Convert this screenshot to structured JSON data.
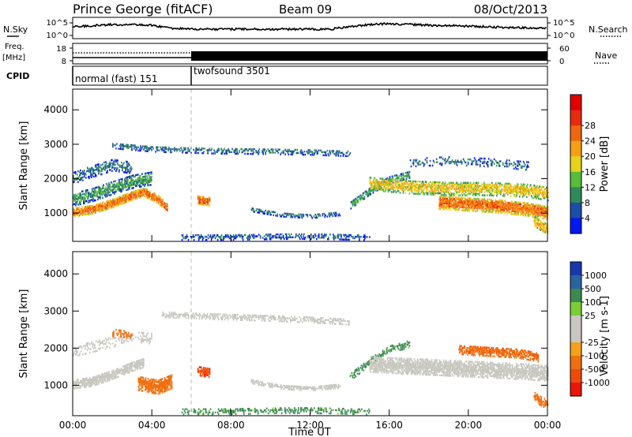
{
  "header": {
    "station": "Prince George (fitACF)",
    "beam": "Beam 09",
    "date": "08/Oct/2013"
  },
  "top_panels": {
    "nsky_label": "N.Sky",
    "nsky_ticks": [
      "10^5",
      "10^0"
    ],
    "nsearch_ticks": [
      "10^5",
      "10^0"
    ],
    "nsearch_label": "N.Search",
    "freq_label_1": "Freq.",
    "freq_label_2": "[MHz]",
    "freq_ticks": [
      "18",
      "8"
    ],
    "nave_ticks": [
      "60",
      "0"
    ],
    "nave_label": "Nave",
    "cpid_label": "CPID",
    "cpid_modes": [
      {
        "name": "normal (fast) 151",
        "start_h": 0,
        "end_h": 6
      },
      {
        "name": "twofsound 3501",
        "start_h": 6,
        "end_h": 24
      }
    ]
  },
  "colors": {
    "power_scale": [
      "#0018f0",
      "#1c4ea8",
      "#2e8a58",
      "#56be3a",
      "#e8d21c",
      "#f5a014",
      "#f0660e",
      "#e82a0e",
      "#e20000"
    ],
    "velocity_scale": [
      "#1838b0",
      "#2a64a0",
      "#3c8a50",
      "#7ccc36",
      "#c8c8c0",
      "#c8c8c0",
      "#f3a21a",
      "#f07010",
      "#ee4a0c",
      "#e81606"
    ]
  },
  "chart_data": [
    {
      "type": "heatmap",
      "title": "",
      "quantity": "Power",
      "colorbar_label": "Power [dB]",
      "colorbar_ticks": [
        "4",
        "8",
        "12",
        "16",
        "20",
        "24",
        "28"
      ],
      "ylabel": "Slant Range [km]",
      "yticks": [
        "1000",
        "2000",
        "3000",
        "4000"
      ],
      "ylim": [
        180,
        4600
      ],
      "xlim": [
        0,
        24
      ],
      "scatter_bands": [
        {
          "x": [
            0.0,
            1.0,
            2.0,
            3.0,
            3.6,
            4.3,
            4.8
          ],
          "y": [
            1020,
            1100,
            1280,
            1500,
            1600,
            1400,
            1120
          ],
          "w": 260,
          "v": 25,
          "d": 0.96
        },
        {
          "x": [
            0.0,
            1.0,
            2.0,
            3.0,
            4.0
          ],
          "y": [
            1380,
            1520,
            1720,
            1900,
            2000
          ],
          "w": 380,
          "v": 11,
          "d": 0.72
        },
        {
          "x": [
            0.0,
            1.0,
            2.0,
            3.0
          ],
          "y": [
            2000,
            2200,
            2380,
            2300
          ],
          "w": 330,
          "v": 8,
          "d": 0.5
        },
        {
          "x": [
            6.3,
            6.9
          ],
          "y": [
            1380,
            1330
          ],
          "w": 260,
          "v": 26,
          "d": 0.9
        },
        {
          "x": [
            2.0,
            4.0,
            7.0,
            10.0,
            12.0,
            14.0
          ],
          "y": [
            2950,
            2850,
            2800,
            2780,
            2760,
            2720
          ],
          "w": 170,
          "v": 8,
          "d": 0.45
        },
        {
          "x": [
            9.0,
            10.5,
            12.0,
            13.5
          ],
          "y": [
            1100,
            950,
            900,
            980
          ],
          "w": 130,
          "v": 8,
          "d": 0.55
        },
        {
          "x": [
            14.0,
            15.0,
            16.0,
            17.0
          ],
          "y": [
            1200,
            1620,
            1950,
            2100
          ],
          "w": 200,
          "v": 12,
          "d": 0.65
        },
        {
          "x": [
            15.0,
            17.0,
            19.0,
            21.0,
            23.0,
            24.0
          ],
          "y": [
            1850,
            1750,
            1700,
            1700,
            1650,
            1550
          ],
          "w": 400,
          "v": 19,
          "d": 0.72
        },
        {
          "x": [
            18.5,
            20.0,
            21.5,
            23.0,
            24.0
          ],
          "y": [
            1300,
            1250,
            1200,
            1100,
            1000
          ],
          "w": 400,
          "v": 25,
          "d": 0.92
        },
        {
          "x": [
            17.0,
            19.0,
            21.0,
            23.0
          ],
          "y": [
            2450,
            2500,
            2450,
            2350
          ],
          "w": 230,
          "v": 7,
          "d": 0.35
        },
        {
          "x": [
            23.3,
            23.7,
            24.0
          ],
          "y": [
            750,
            600,
            520
          ],
          "w": 280,
          "v": 21,
          "d": 0.85
        },
        {
          "x": [
            5.5,
            8.0,
            11.0,
            13.0,
            15.0
          ],
          "y": [
            290,
            290,
            320,
            310,
            280
          ],
          "w": 170,
          "v": 6,
          "d": 0.45
        }
      ]
    },
    {
      "type": "heatmap",
      "title": "",
      "quantity": "Velocity",
      "colorbar_label": "Velocity [m s-1]",
      "colorbar_ticks": [
        "1000",
        "500",
        "100",
        "25",
        "-25",
        "-100",
        "-500",
        "-1000"
      ],
      "xlabel": "Time UT",
      "xticks": [
        "00:00",
        "04:00",
        "08:00",
        "12:00",
        "16:00",
        "20:00",
        "00:00"
      ],
      "ylabel": "Slant Range [km]",
      "yticks": [
        "1000",
        "2000",
        "3000",
        "4000"
      ],
      "ylim": [
        180,
        4600
      ],
      "xlim": [
        0,
        24
      ],
      "scatter_bands": [
        {
          "x": [
            0.0,
            1.0,
            2.0,
            3.0,
            3.6
          ],
          "y": [
            1020,
            1100,
            1280,
            1500,
            1600
          ],
          "w": 260,
          "v": 0,
          "d": 0.92
        },
        {
          "x": [
            3.3,
            4.3,
            5.0
          ],
          "y": [
            1050,
            950,
            1100
          ],
          "w": 400,
          "v": -300,
          "d": 0.95
        },
        {
          "x": [
            0.0,
            1.5,
            3.0,
            4.0
          ],
          "y": [
            1900,
            2100,
            2300,
            2250
          ],
          "w": 300,
          "v": 0,
          "d": 0.35
        },
        {
          "x": [
            2.0,
            3.0
          ],
          "y": [
            2400,
            2350
          ],
          "w": 200,
          "v": -200,
          "d": 0.55
        },
        {
          "x": [
            6.3,
            6.9
          ],
          "y": [
            1380,
            1330
          ],
          "w": 260,
          "v": -800,
          "d": 0.85
        },
        {
          "x": [
            4.5,
            7.0,
            10.0,
            12.0,
            14.0
          ],
          "y": [
            2900,
            2850,
            2800,
            2760,
            2700
          ],
          "w": 170,
          "v": 0,
          "d": 0.6
        },
        {
          "x": [
            9.0,
            10.5,
            12.0,
            13.5
          ],
          "y": [
            1100,
            950,
            900,
            980
          ],
          "w": 130,
          "v": 0,
          "d": 0.7
        },
        {
          "x": [
            14.0,
            15.0,
            16.0,
            17.0
          ],
          "y": [
            1200,
            1620,
            1950,
            2100
          ],
          "w": 200,
          "v": 150,
          "d": 0.55
        },
        {
          "x": [
            15.0,
            17.0,
            19.0,
            21.0,
            23.0,
            24.0
          ],
          "y": [
            1550,
            1500,
            1450,
            1400,
            1350,
            1300
          ],
          "w": 420,
          "v": 0,
          "d": 0.9
        },
        {
          "x": [
            19.5,
            21.0,
            22.5,
            23.5
          ],
          "y": [
            1950,
            1900,
            1850,
            1750
          ],
          "w": 260,
          "v": -400,
          "d": 0.8
        },
        {
          "x": [
            23.3,
            23.7,
            24.0
          ],
          "y": [
            700,
            550,
            480
          ],
          "w": 260,
          "v": -300,
          "d": 0.8
        },
        {
          "x": [
            5.5,
            8.0,
            11.0,
            13.0,
            15.0
          ],
          "y": [
            290,
            290,
            320,
            310,
            280
          ],
          "w": 170,
          "v": 150,
          "d": 0.4
        }
      ]
    }
  ]
}
